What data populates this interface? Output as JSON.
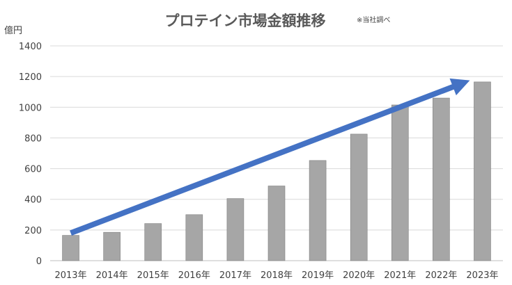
{
  "chart_data": {
    "type": "bar",
    "title": "プロテイン市場金額推移",
    "note": "※当社調べ",
    "ylabel": "億円",
    "xlabel": "",
    "categories": [
      "2013年",
      "2014年",
      "2015年",
      "2016年",
      "2017年",
      "2018年",
      "2019年",
      "2020年",
      "2021年",
      "2022年",
      "2023年"
    ],
    "values": [
      165,
      185,
      242,
      300,
      405,
      487,
      653,
      825,
      1015,
      1060,
      1165
    ],
    "ylim": [
      0,
      1400
    ],
    "yticks": [
      0,
      200,
      400,
      600,
      800,
      1000,
      1200,
      1400
    ],
    "grid": true,
    "legend": "none",
    "bar_color": "#a6a6a6",
    "bar_edge_color": "#7f7f7f",
    "trend_arrow": {
      "from": [
        "2013年",
        180
      ],
      "to": [
        "2023年",
        1175
      ],
      "color": "#4472c4"
    }
  }
}
